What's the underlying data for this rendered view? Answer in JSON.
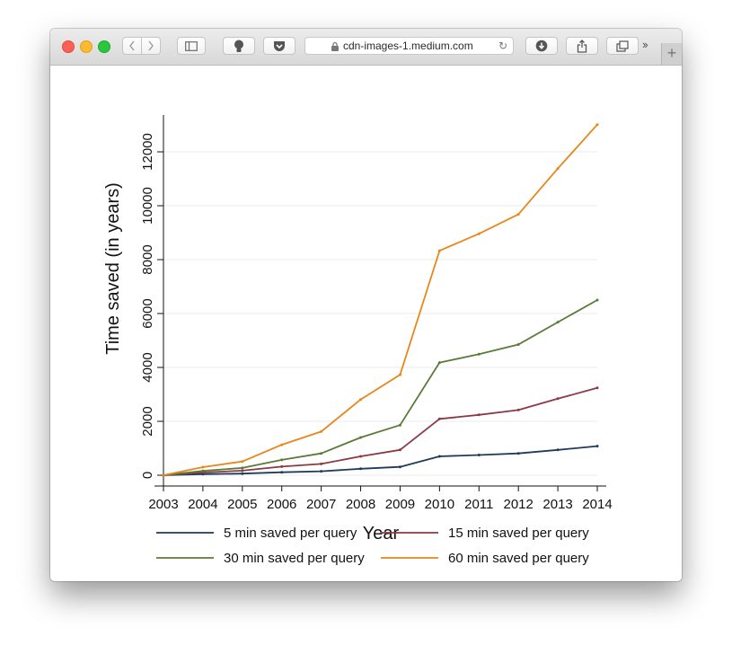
{
  "browser": {
    "url": "cdn-images-1.medium.com",
    "overflow_icon": "double-chevron-right-icon",
    "new_tab_icon": "plus-icon"
  },
  "chart_data": {
    "type": "line",
    "title": "",
    "xlabel": "Year",
    "ylabel": "Time saved (in years)",
    "x": [
      2003,
      2004,
      2005,
      2006,
      2007,
      2008,
      2009,
      2010,
      2011,
      2012,
      2013,
      2014
    ],
    "xlim": [
      2003,
      2014
    ],
    "ylim": [
      0,
      13000
    ],
    "yticks": [
      0,
      2000,
      4000,
      6000,
      8000,
      10000,
      12000
    ],
    "grid": true,
    "legend_position": "bottom",
    "series": [
      {
        "name": "5 min saved per query",
        "color": "#1f3b5a",
        "values": [
          0,
          40,
          60,
          110,
          145,
          240,
          310,
          700,
          750,
          810,
          940,
          1080
        ]
      },
      {
        "name": "15 min saved per query",
        "color": "#8b3a45",
        "values": [
          0,
          100,
          170,
          320,
          420,
          700,
          940,
          2090,
          2240,
          2420,
          2840,
          3240
        ]
      },
      {
        "name": "30 min saved per query",
        "color": "#5b7a38",
        "values": [
          0,
          160,
          270,
          570,
          810,
          1400,
          1860,
          4180,
          4490,
          4850,
          5680,
          6500
        ]
      },
      {
        "name": "60 min saved per query",
        "color": "#e8861a",
        "values": [
          0,
          300,
          510,
          1130,
          1620,
          2810,
          3730,
          8330,
          8960,
          9680,
          11380,
          13010
        ]
      }
    ]
  }
}
